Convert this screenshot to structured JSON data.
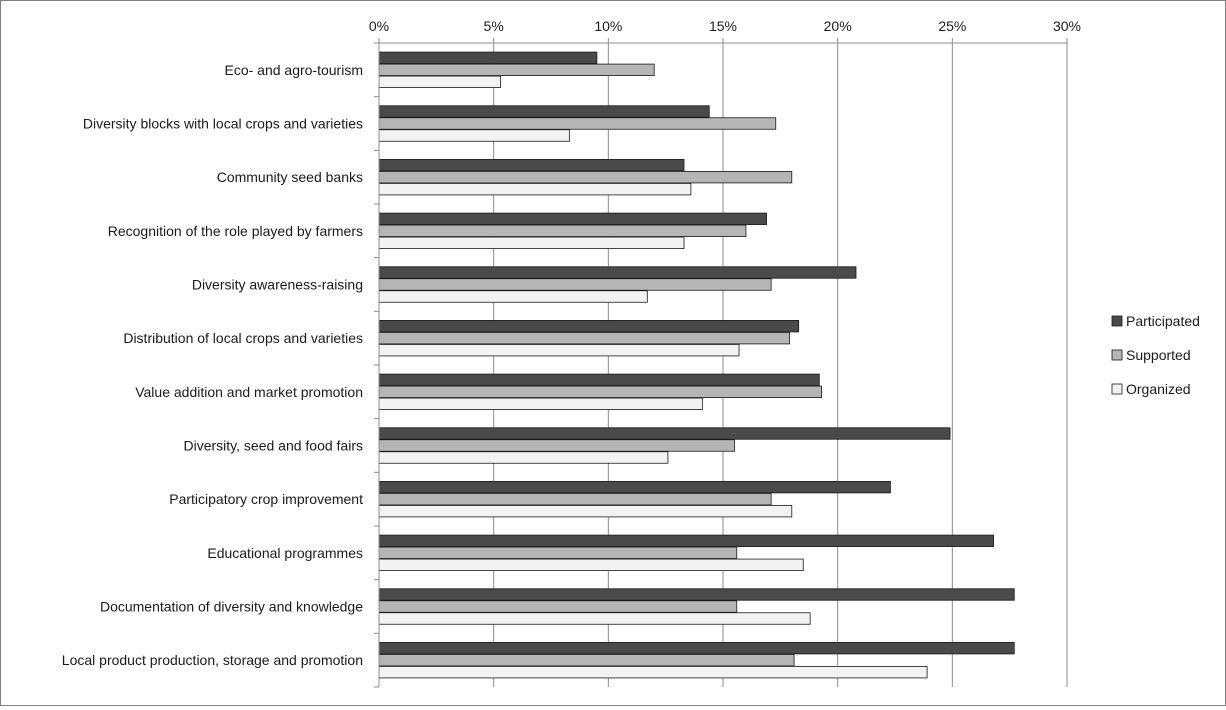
{
  "chart_data": {
    "type": "bar",
    "orientation": "horizontal",
    "categories": [
      "Eco- and agro-tourism",
      "Diversity blocks with local crops and varieties",
      "Community seed banks",
      "Recognition of the role played by farmers",
      "Diversity awareness-raising",
      "Distribution of local crops and varieties",
      "Value addition and market promotion",
      "Diversity, seed and food fairs",
      "Participatory crop improvement",
      "Educational programmes",
      "Documentation of diversity and knowledge",
      "Local product production, storage and promotion"
    ],
    "series": [
      {
        "name": "Participated",
        "color": "#4a4a4a",
        "values": [
          9.5,
          14.4,
          13.3,
          16.9,
          20.8,
          18.3,
          19.2,
          24.9,
          22.3,
          26.8,
          27.7,
          27.7
        ]
      },
      {
        "name": "Supported",
        "color": "#b5b5b5",
        "values": [
          12.0,
          17.3,
          18.0,
          16.0,
          17.1,
          17.9,
          19.3,
          15.5,
          17.1,
          15.6,
          15.6,
          18.1
        ]
      },
      {
        "name": "Organized",
        "color": "#f2f2f2",
        "values": [
          5.3,
          8.3,
          13.6,
          13.3,
          11.7,
          15.7,
          14.1,
          12.6,
          18.0,
          18.5,
          18.8,
          23.9
        ]
      }
    ],
    "xlim": [
      0,
      30
    ],
    "xticks": [
      "0%",
      "5%",
      "10%",
      "15%",
      "20%",
      "25%",
      "30%"
    ],
    "xtick_values": [
      0,
      5,
      10,
      15,
      20,
      25,
      30
    ],
    "axis_position": "top",
    "grid": "vertical",
    "legend": {
      "position": "right",
      "entries": [
        "Participated",
        "Supported",
        "Organized"
      ]
    },
    "title": "",
    "xlabel": "",
    "ylabel": ""
  }
}
